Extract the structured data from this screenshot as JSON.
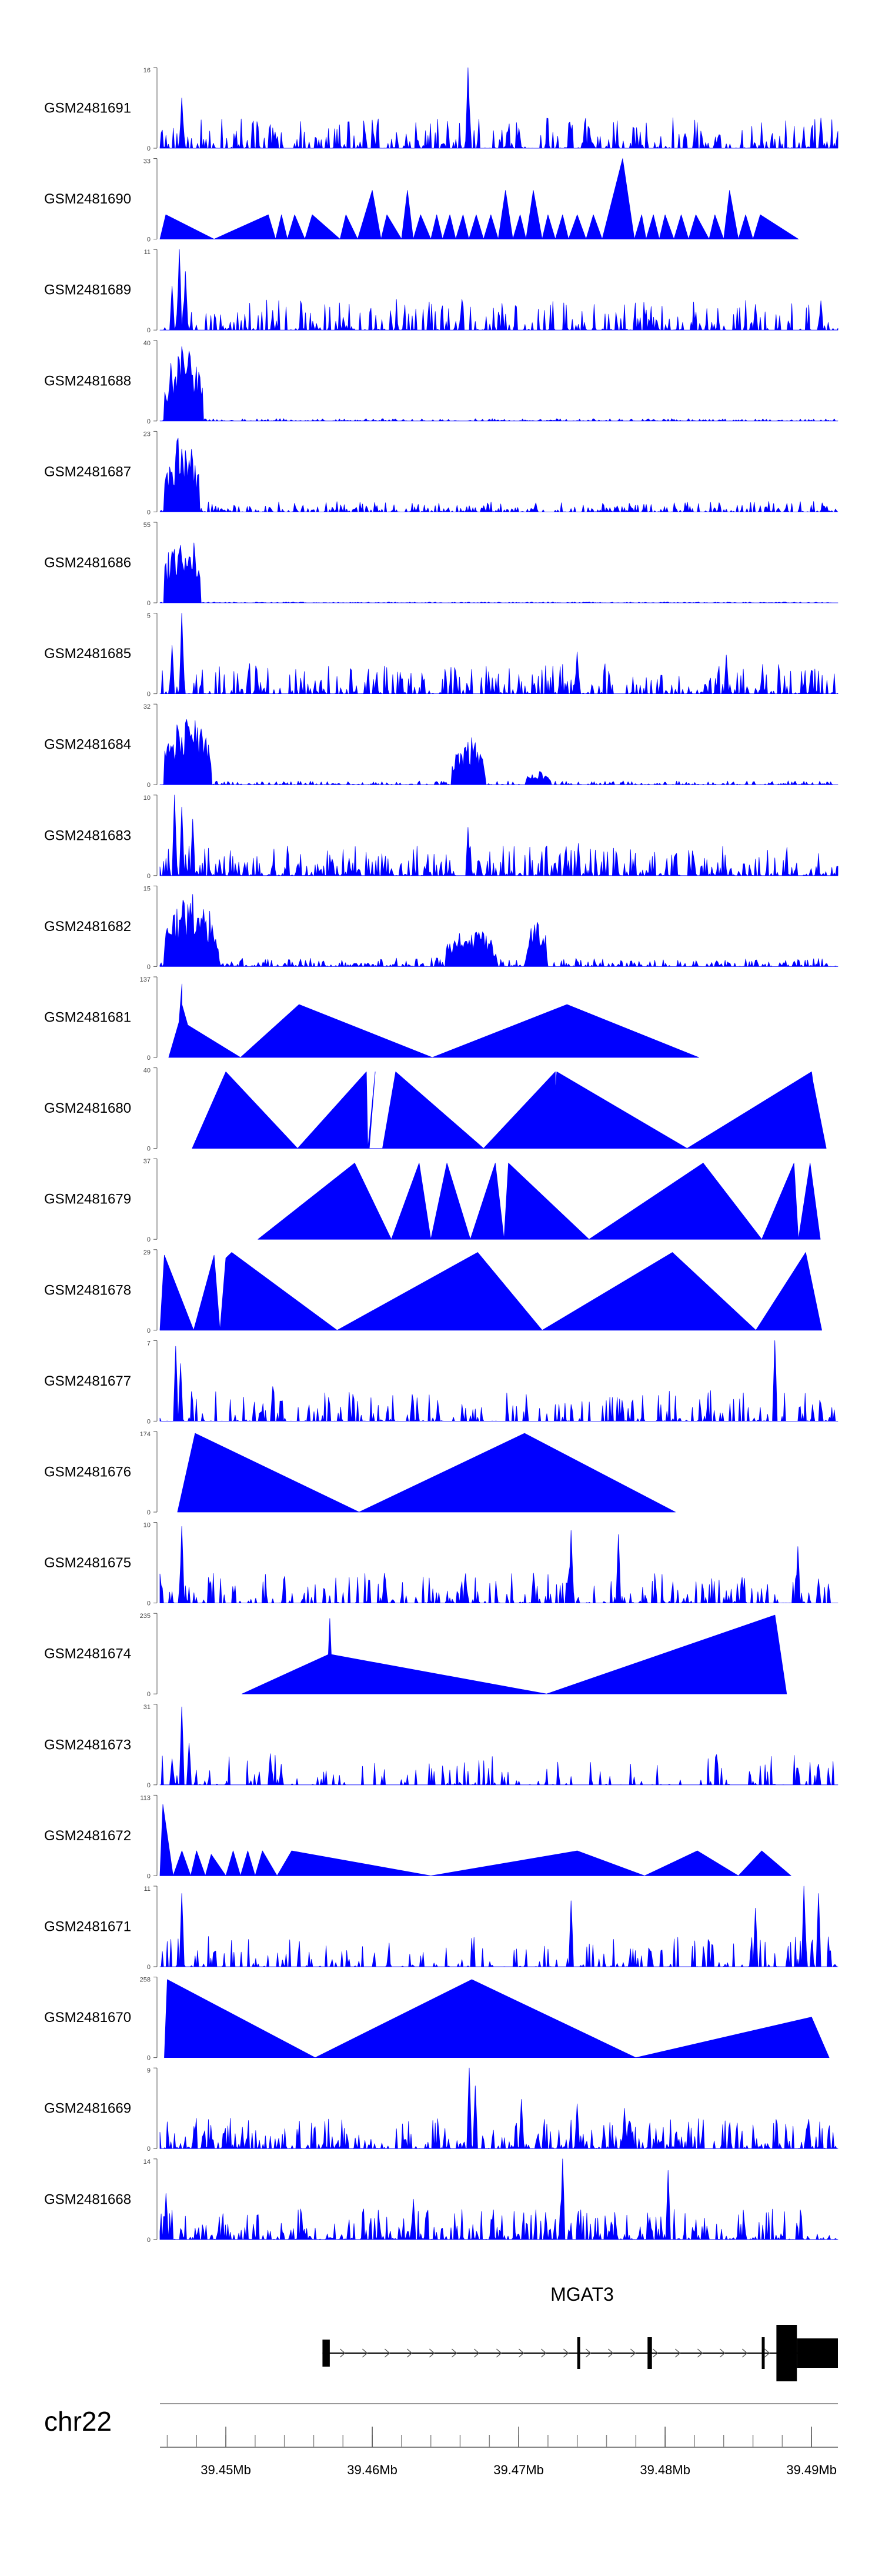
{
  "chart_data": {
    "type": "area",
    "title": "",
    "xlabel": "",
    "ylabel": "",
    "chromosome": "chr22",
    "xlim_mb": [
      39.4455,
      39.4918
    ],
    "color": "#0000ff",
    "gene": {
      "name": "MGAT3",
      "strand": "+",
      "start_mb": 39.4566,
      "end_mb": 39.4918,
      "exons_mb": [
        [
          39.4566,
          39.4571
        ],
        [
          39.474,
          39.4742
        ],
        [
          39.4788,
          39.4791
        ],
        [
          39.4866,
          39.4868
        ],
        [
          39.4876,
          39.489
        ],
        [
          39.489,
          39.4918
        ]
      ]
    },
    "x_axis": {
      "major_ticks_mb": [
        39.45,
        39.46,
        39.47,
        39.48,
        39.49
      ],
      "tick_labels": [
        "39.45Mb",
        "39.46Mb",
        "39.47Mb",
        "39.48Mb",
        "39.49Mb"
      ],
      "minor_tick_step_mb": 0.002
    },
    "series": [
      {
        "name": "GSM2481691",
        "ymin": 0,
        "ymax": 16,
        "ymax_label": "16",
        "ymin_label": "0",
        "style": "dense",
        "density": 1.0,
        "peaks": [
          [
            39.447,
            10
          ],
          [
            39.4665,
            16
          ],
          [
            39.4748,
            4
          ],
          [
            39.4906,
            6
          ],
          [
            39.47,
            4
          ],
          [
            39.4595,
            3.5
          ]
        ]
      },
      {
        "name": "GSM2481690",
        "ymin": 0,
        "ymax": 33,
        "ymax_label": "33",
        "ymin_label": "0",
        "style": "tri",
        "breaks": [
          [
            39.4455,
            0
          ],
          [
            39.4459,
            10
          ],
          [
            39.4492,
            0
          ],
          [
            39.4529,
            10
          ],
          [
            39.4534,
            0
          ],
          [
            39.4538,
            10
          ],
          [
            39.4542,
            0
          ],
          [
            39.4547,
            10
          ],
          [
            39.4554,
            0
          ],
          [
            39.4559,
            10
          ],
          [
            39.4578,
            0
          ],
          [
            39.4582,
            10
          ],
          [
            39.459,
            0
          ],
          [
            39.46,
            20
          ],
          [
            39.4606,
            0
          ],
          [
            39.461,
            10
          ],
          [
            39.462,
            0
          ],
          [
            39.4624,
            20
          ],
          [
            39.4628,
            0
          ],
          [
            39.4633,
            10
          ],
          [
            39.464,
            0
          ],
          [
            39.4644,
            10
          ],
          [
            39.4648,
            0
          ],
          [
            39.4653,
            10
          ],
          [
            39.4657,
            0
          ],
          [
            39.4662,
            10
          ],
          [
            39.4666,
            0
          ],
          [
            39.4671,
            10
          ],
          [
            39.4676,
            0
          ],
          [
            39.4681,
            10
          ],
          [
            39.4686,
            0
          ],
          [
            39.4691,
            20
          ],
          [
            39.4696,
            0
          ],
          [
            39.4701,
            10
          ],
          [
            39.4705,
            0
          ],
          [
            39.471,
            20
          ],
          [
            39.4716,
            0
          ],
          [
            39.472,
            10
          ],
          [
            39.4725,
            0
          ],
          [
            39.473,
            10
          ],
          [
            39.4734,
            0
          ],
          [
            39.474,
            10
          ],
          [
            39.4746,
            0
          ],
          [
            39.4751,
            10
          ],
          [
            39.4757,
            0
          ],
          [
            39.4771,
            33
          ],
          [
            39.4779,
            0
          ],
          [
            39.4784,
            10
          ],
          [
            39.4787,
            0
          ],
          [
            39.4792,
            10
          ],
          [
            39.4796,
            0
          ],
          [
            39.48,
            10
          ],
          [
            39.4806,
            0
          ],
          [
            39.4811,
            10
          ],
          [
            39.4816,
            0
          ],
          [
            39.4821,
            10
          ],
          [
            39.483,
            0
          ],
          [
            39.4834,
            10
          ],
          [
            39.484,
            0
          ],
          [
            39.4844,
            20
          ],
          [
            39.485,
            0
          ],
          [
            39.4855,
            10
          ],
          [
            39.486,
            0
          ],
          [
            39.4865,
            10
          ],
          [
            39.4891,
            0
          ]
        ]
      },
      {
        "name": "GSM2481689",
        "ymin": 0,
        "ymax": 11,
        "ymax_label": "11",
        "ymin_label": "0",
        "style": "dense",
        "density": 0.9,
        "peaks": [
          [
            39.4468,
            11
          ],
          [
            39.4472,
            8
          ],
          [
            39.4463,
            6
          ],
          [
            39.4906,
            4
          ],
          [
            39.4862,
            3.5
          ]
        ]
      },
      {
        "name": "GSM2481688",
        "ymin": 0,
        "ymax": 40,
        "ymax_label": "40",
        "ymin_label": "0",
        "style": "cluster",
        "cluster": [
          39.4458,
          39.4484,
          38
        ],
        "base": 1.2
      },
      {
        "name": "GSM2481687",
        "ymin": 0,
        "ymax": 23,
        "ymax_label": "23",
        "ymin_label": "0",
        "style": "cluster",
        "cluster": [
          39.4458,
          39.4482,
          22
        ],
        "base": 3
      },
      {
        "name": "GSM2481686",
        "ymin": 0,
        "ymax": 55,
        "ymax_label": "55",
        "ymin_label": "0",
        "style": "cluster",
        "cluster": [
          39.4458,
          39.4483,
          52
        ],
        "base": 0.6
      },
      {
        "name": "GSM2481685",
        "ymin": 0,
        "ymax": 5,
        "ymax_label": "5",
        "ymin_label": "0",
        "style": "dense",
        "density": 1.0,
        "peaks": [
          [
            39.447,
            5
          ],
          [
            39.4463,
            3
          ],
          [
            39.474,
            2.6
          ],
          [
            39.4842,
            2.4
          ]
        ]
      },
      {
        "name": "GSM2481684",
        "ymin": 0,
        "ymax": 32,
        "ymax_label": "32",
        "ymin_label": "0",
        "style": "cluster",
        "cluster": [
          39.4458,
          39.449,
          30
        ],
        "cluster2": [
          39.4654,
          39.4677,
          20
        ],
        "cluster3": [
          39.4705,
          39.4722,
          6
        ],
        "base": 1.5
      },
      {
        "name": "GSM2481683",
        "ymin": 0,
        "ymax": 10,
        "ymax_label": "10",
        "ymin_label": "0",
        "style": "dense",
        "density": 1.2,
        "peaks": [
          [
            39.4465,
            10
          ],
          [
            39.447,
            8.5
          ],
          [
            39.4477,
            7
          ],
          [
            39.4665,
            6
          ],
          [
            39.4741,
            4
          ]
        ]
      },
      {
        "name": "GSM2481682",
        "ymin": 0,
        "ymax": 15,
        "ymax_label": "15",
        "ymin_label": "0",
        "style": "cluster",
        "cluster": [
          39.4458,
          39.4495,
          14
        ],
        "cluster2": [
          39.465,
          39.4685,
          8
        ],
        "cluster3": [
          39.4705,
          39.472,
          9
        ],
        "base": 1.6
      },
      {
        "name": "GSM2481681",
        "ymin": 0,
        "ymax": 137,
        "ymax_label": "137",
        "ymin_label": "0",
        "style": "tri",
        "breaks": [
          [
            39.4461,
            0
          ],
          [
            39.4468,
            60
          ],
          [
            39.447,
            125
          ],
          [
            39.447,
            90
          ],
          [
            39.4474,
            55
          ],
          [
            39.451,
            0
          ],
          [
            39.455,
            90
          ],
          [
            39.4641,
            0
          ],
          [
            39.4733,
            90
          ],
          [
            39.4823,
            0
          ]
        ]
      },
      {
        "name": "GSM2481680",
        "ymin": 0,
        "ymax": 40,
        "ymax_label": "40",
        "ymin_label": "0",
        "style": "tri",
        "breaks": [
          [
            39.4477,
            0
          ],
          [
            39.45,
            38
          ],
          [
            39.4549,
            0
          ],
          [
            39.4596,
            38
          ],
          [
            39.4597,
            0
          ],
          [
            39.4602,
            38
          ],
          [
            39.4598,
            0
          ],
          [
            39.4607,
            0
          ],
          [
            39.4616,
            38
          ],
          [
            39.4676,
            0
          ],
          [
            39.4725,
            38
          ],
          [
            39.4725,
            28
          ],
          [
            39.4726,
            38
          ],
          [
            39.4815,
            0
          ],
          [
            39.49,
            38
          ],
          [
            39.4901,
            33
          ],
          [
            39.491,
            0
          ]
        ]
      },
      {
        "name": "GSM2481679",
        "ymin": 0,
        "ymax": 37,
        "ymax_label": "37",
        "ymin_label": "0",
        "style": "tri",
        "breaks": [
          [
            39.4522,
            0
          ],
          [
            39.4588,
            35
          ],
          [
            39.4613,
            0
          ],
          [
            39.4632,
            35
          ],
          [
            39.464,
            0
          ],
          [
            39.4651,
            35
          ],
          [
            39.4667,
            0
          ],
          [
            39.4684,
            35
          ],
          [
            39.469,
            0
          ],
          [
            39.4693,
            35
          ],
          [
            39.4748,
            0
          ],
          [
            39.4826,
            35
          ],
          [
            39.4866,
            0
          ],
          [
            39.4888,
            35
          ],
          [
            39.4891,
            0
          ],
          [
            39.4899,
            35
          ],
          [
            39.4906,
            0
          ]
        ]
      },
      {
        "name": "GSM2481678",
        "ymin": 0,
        "ymax": 29,
        "ymax_label": "29",
        "ymin_label": "0",
        "style": "tri",
        "breaks": [
          [
            39.4455,
            0
          ],
          [
            39.4458,
            27
          ],
          [
            39.4478,
            0
          ],
          [
            39.4492,
            27
          ],
          [
            39.4496,
            0
          ],
          [
            39.45,
            26
          ],
          [
            39.4504,
            28
          ],
          [
            39.4576,
            0
          ],
          [
            39.4672,
            28
          ],
          [
            39.4716,
            0
          ],
          [
            39.4805,
            28
          ],
          [
            39.4862,
            0
          ],
          [
            39.4896,
            28
          ],
          [
            39.4907,
            0
          ]
        ]
      },
      {
        "name": "GSM2481677",
        "ymin": 0,
        "ymax": 7,
        "ymax_label": "7",
        "ymin_label": "0",
        "style": "dense",
        "density": 0.75,
        "peaks": [
          [
            39.4466,
            6.5
          ],
          [
            39.4469,
            5
          ],
          [
            39.4875,
            7
          ],
          [
            39.4532,
            3
          ],
          [
            39.4906,
            1.5
          ]
        ]
      },
      {
        "name": "GSM2481676",
        "ymin": 0,
        "ymax": 174,
        "ymax_label": "174",
        "ymin_label": "0",
        "style": "tri",
        "breaks": [
          [
            39.4467,
            0
          ],
          [
            39.4479,
            170
          ],
          [
            39.4591,
            0
          ],
          [
            39.4704,
            170
          ],
          [
            39.4807,
            0
          ]
        ]
      },
      {
        "name": "GSM2481675",
        "ymin": 0,
        "ymax": 10,
        "ymax_label": "10",
        "ymin_label": "0",
        "style": "dense",
        "density": 0.85,
        "peaks": [
          [
            39.447,
            9.5
          ],
          [
            39.4736,
            9
          ],
          [
            39.4768,
            8.5
          ],
          [
            39.4891,
            7
          ],
          [
            39.4905,
            3
          ]
        ]
      },
      {
        "name": "GSM2481674",
        "ymin": 0,
        "ymax": 235,
        "ymax_label": "235",
        "ymin_label": "0",
        "style": "tri",
        "breaks": [
          [
            39.4511,
            0
          ],
          [
            39.457,
            115
          ],
          [
            39.4571,
            220
          ],
          [
            39.4572,
            115
          ],
          [
            39.4719,
            0
          ],
          [
            39.4875,
            230
          ],
          [
            39.4883,
            0
          ]
        ]
      },
      {
        "name": "GSM2481673",
        "ymin": 0,
        "ymax": 31,
        "ymax_label": "31",
        "ymin_label": "0",
        "style": "dense",
        "density": 0.55,
        "peaks": [
          [
            39.447,
            30
          ],
          [
            39.4475,
            16
          ],
          [
            39.453,
            12
          ],
          [
            39.4463,
            10
          ],
          [
            39.4905,
            8
          ]
        ]
      },
      {
        "name": "GSM2481672",
        "ymin": 0,
        "ymax": 113,
        "ymax_label": "113",
        "ymin_label": "0",
        "style": "tri",
        "breaks": [
          [
            39.4455,
            0
          ],
          [
            39.4457,
            100
          ],
          [
            39.4464,
            0
          ],
          [
            39.447,
            35
          ],
          [
            39.4476,
            0
          ],
          [
            39.448,
            35
          ],
          [
            39.4486,
            0
          ],
          [
            39.449,
            30
          ],
          [
            39.45,
            0
          ],
          [
            39.4505,
            35
          ],
          [
            39.451,
            0
          ],
          [
            39.4515,
            35
          ],
          [
            39.452,
            0
          ],
          [
            39.4525,
            35
          ],
          [
            39.4535,
            0
          ],
          [
            39.4545,
            35
          ],
          [
            39.464,
            0
          ],
          [
            39.474,
            35
          ],
          [
            39.4786,
            0
          ],
          [
            39.4822,
            35
          ],
          [
            39.485,
            0
          ],
          [
            39.4866,
            35
          ],
          [
            39.4886,
            0
          ]
        ]
      },
      {
        "name": "GSM2481671",
        "ymin": 0,
        "ymax": 11,
        "ymax_label": "11",
        "ymin_label": "0",
        "style": "dense",
        "density": 0.6,
        "peaks": [
          [
            39.447,
            10
          ],
          [
            39.4895,
            11
          ],
          [
            39.4905,
            10
          ],
          [
            39.4862,
            8
          ],
          [
            39.4736,
            9
          ]
        ]
      },
      {
        "name": "GSM2481670",
        "ymin": 0,
        "ymax": 258,
        "ymax_label": "258",
        "ymin_label": "0",
        "style": "tri",
        "breaks": [
          [
            39.4458,
            0
          ],
          [
            39.446,
            250
          ],
          [
            39.4561,
            0
          ],
          [
            39.4668,
            250
          ],
          [
            39.478,
            0
          ],
          [
            39.49,
            130
          ],
          [
            39.4912,
            0
          ]
        ]
      },
      {
        "name": "GSM2481669",
        "ymin": 0,
        "ymax": 9,
        "ymax_label": "9",
        "ymin_label": "0",
        "style": "dense",
        "density": 1.2,
        "peaks": [
          [
            39.4666,
            9
          ],
          [
            39.467,
            7
          ],
          [
            39.4702,
            5.5
          ],
          [
            39.474,
            5
          ],
          [
            39.4772,
            4.5
          ]
        ]
      },
      {
        "name": "GSM2481668",
        "ymin": 0,
        "ymax": 14,
        "ymax_label": "14",
        "ymin_label": "0",
        "style": "dense",
        "density": 1.1,
        "peaks": [
          [
            39.473,
            14
          ],
          [
            39.4802,
            12
          ],
          [
            39.4628,
            7
          ],
          [
            39.4459,
            8
          ]
        ]
      }
    ]
  }
}
